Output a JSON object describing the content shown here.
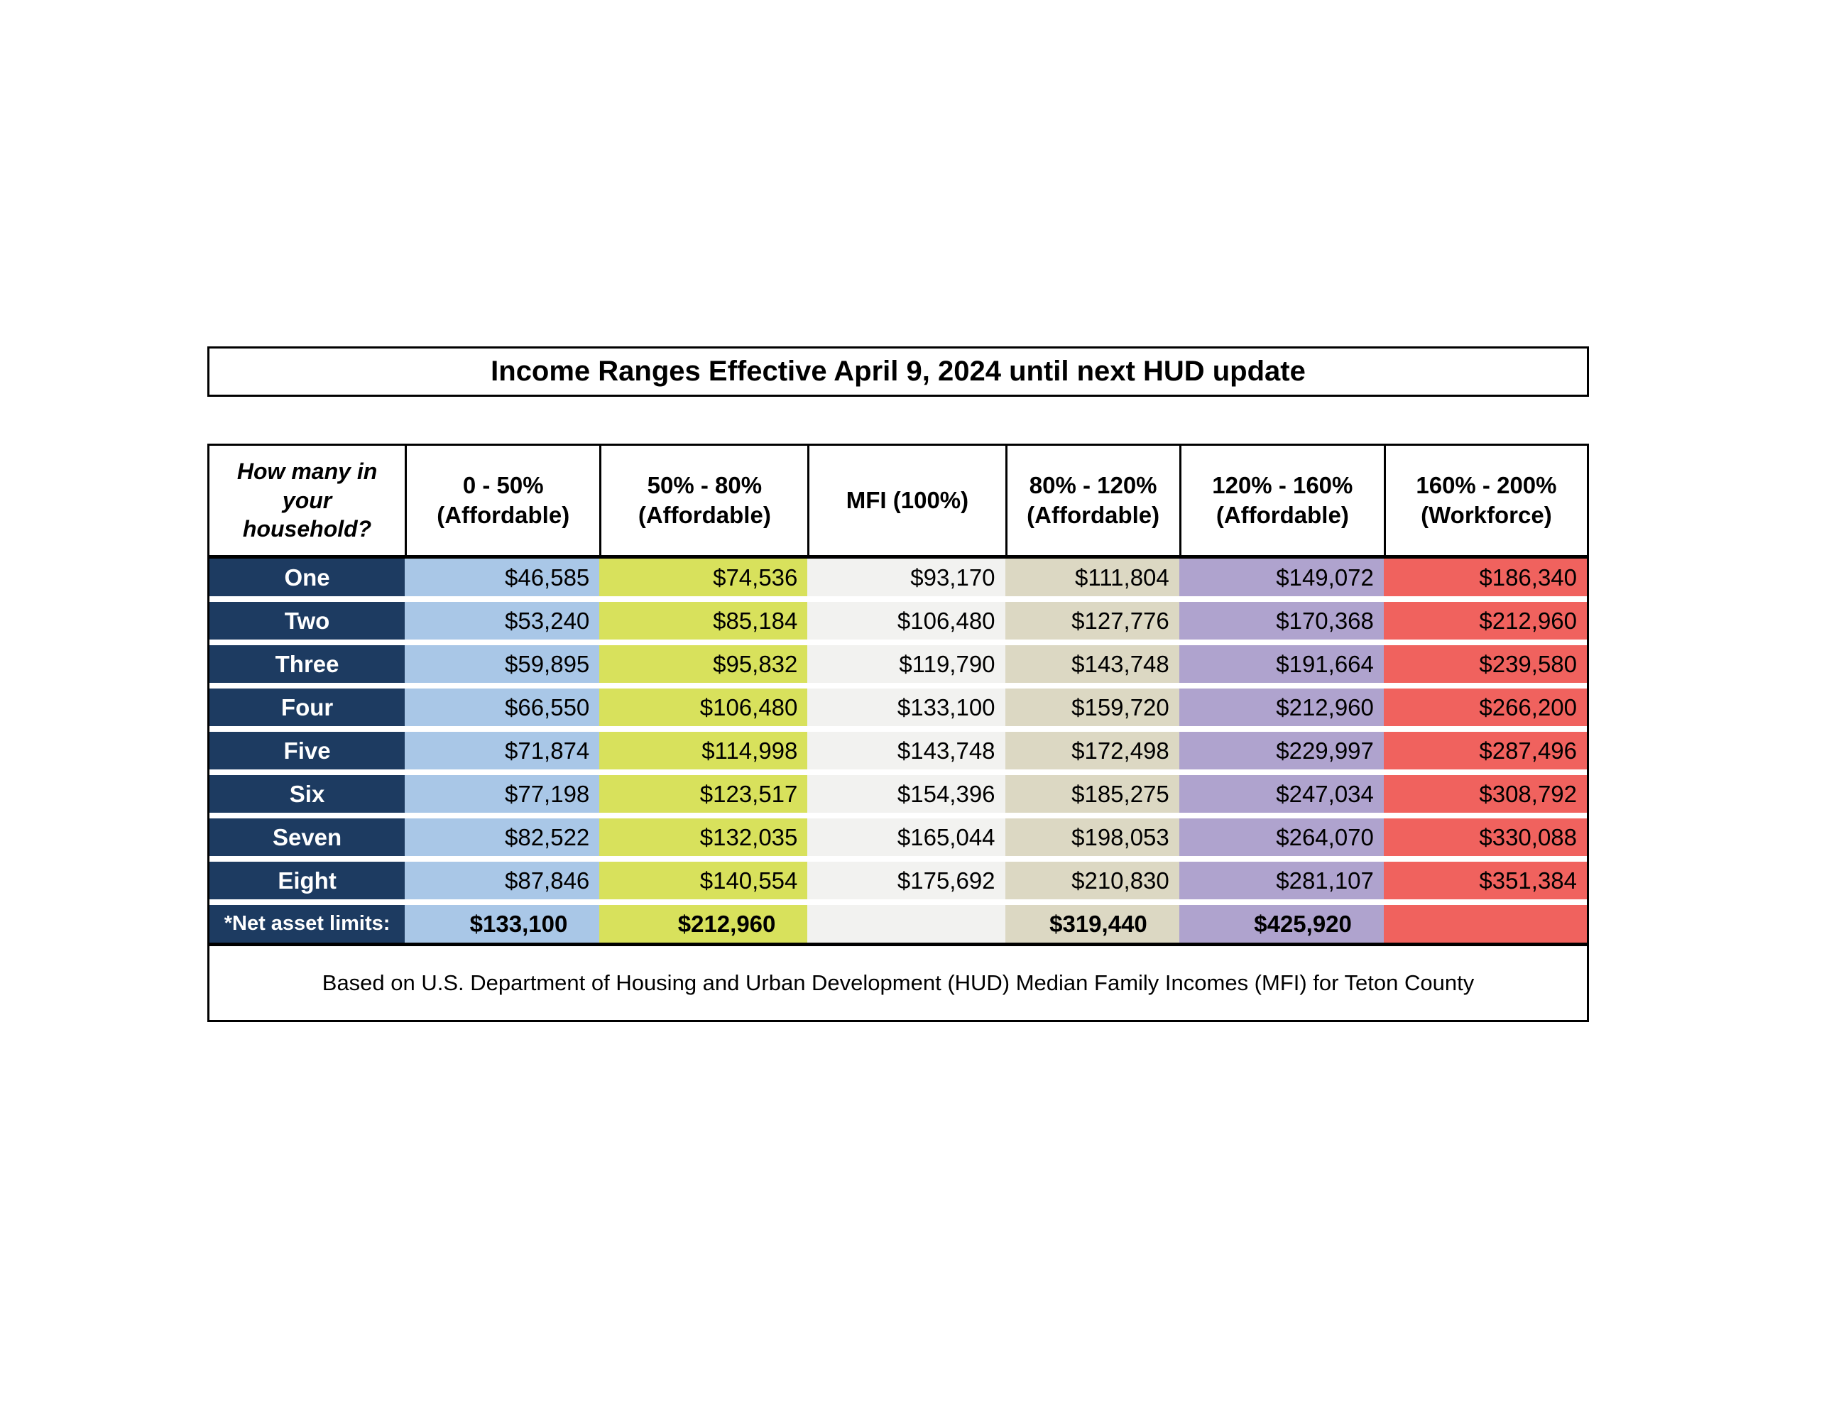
{
  "title": "Income Ranges Effective April 9, 2024 until next HUD update",
  "table": {
    "row_header_title": "How many in\nyour\nhousehold?",
    "column_headers": [
      {
        "line1": "0 - 50%",
        "line2": "(Affordable)"
      },
      {
        "line1": "50% - 80%",
        "line2": "(Affordable)"
      },
      {
        "line1": "MFI (100%)",
        "line2": ""
      },
      {
        "line1": "80% - 120%",
        "line2": "(Affordable)"
      },
      {
        "line1": "120% - 160%",
        "line2": "(Affordable)"
      },
      {
        "line1": "160% - 200%",
        "line2": "(Workforce)"
      }
    ],
    "rows": [
      {
        "label": "One",
        "values": [
          "$46,585",
          "$74,536",
          "$93,170",
          "$111,804",
          "$149,072",
          "$186,340"
        ]
      },
      {
        "label": "Two",
        "values": [
          "$53,240",
          "$85,184",
          "$106,480",
          "$127,776",
          "$170,368",
          "$212,960"
        ]
      },
      {
        "label": "Three",
        "values": [
          "$59,895",
          "$95,832",
          "$119,790",
          "$143,748",
          "$191,664",
          "$239,580"
        ]
      },
      {
        "label": "Four",
        "values": [
          "$66,550",
          "$106,480",
          "$133,100",
          "$159,720",
          "$212,960",
          "$266,200"
        ]
      },
      {
        "label": "Five",
        "values": [
          "$71,874",
          "$114,998",
          "$143,748",
          "$172,498",
          "$229,997",
          "$287,496"
        ]
      },
      {
        "label": "Six",
        "values": [
          "$77,198",
          "$123,517",
          "$154,396",
          "$185,275",
          "$247,034",
          "$308,792"
        ]
      },
      {
        "label": "Seven",
        "values": [
          "$82,522",
          "$132,035",
          "$165,044",
          "$198,053",
          "$264,070",
          "$330,088"
        ]
      },
      {
        "label": "Eight",
        "values": [
          "$87,846",
          "$140,554",
          "$175,692",
          "$210,830",
          "$281,107",
          "$351,384"
        ]
      }
    ],
    "net_asset_row": {
      "label": "*Net asset limits:",
      "values": [
        "$133,100",
        "$212,960",
        "",
        "$319,440",
        "$425,920",
        ""
      ]
    }
  },
  "footnote": "Based on U.S. Department of Housing and Urban Development (HUD) Median Family Incomes (MFI) for Teton County",
  "colors": {
    "row_label_bg": "#1d3b61",
    "col_0_50": "#a9c7e7",
    "col_50_80": "#d8e15c",
    "col_mfi": "#f2f2f0",
    "col_80_120": "#dcd8c3",
    "col_120_160": "#afa3ce",
    "col_160_200": "#f0625e",
    "border": "#000000",
    "background": "#ffffff"
  }
}
